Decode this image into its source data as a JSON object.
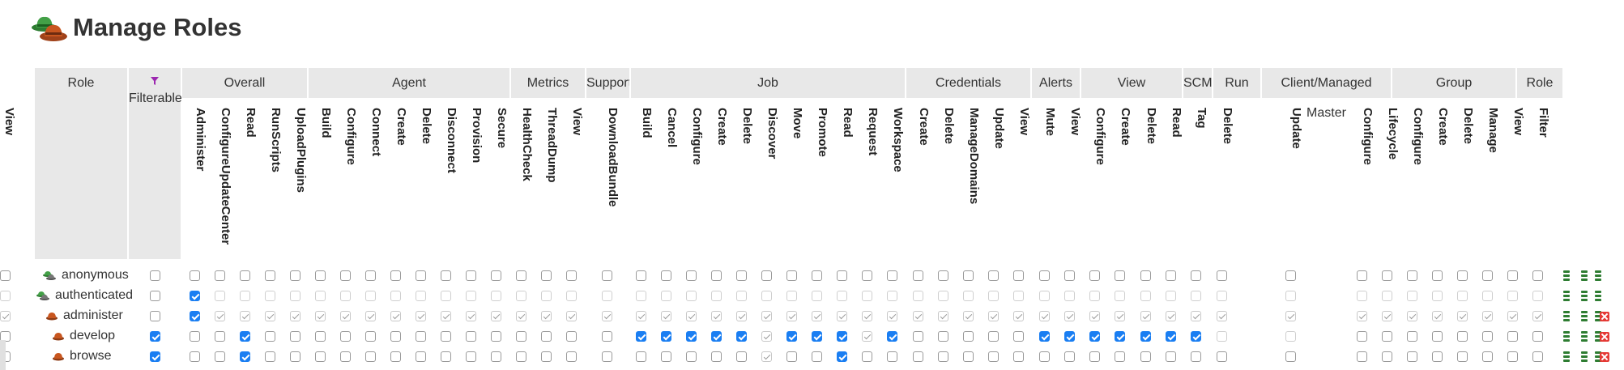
{
  "page": {
    "title": "Manage Roles"
  },
  "header": {
    "role_label": "Role",
    "filter_label": "Filterable",
    "groups": [
      {
        "name": "Overall",
        "perms": [
          "Administer",
          "ConfigureUpdateCenter",
          "Read",
          "RunScripts",
          "UploadPlugins"
        ]
      },
      {
        "name": "Agent",
        "perms": [
          "Build",
          "Configure",
          "Connect",
          "Create",
          "Delete",
          "Disconnect",
          "Provision",
          "Secure"
        ]
      },
      {
        "name": "Metrics",
        "perms": [
          "HealthCheck",
          "ThreadDump",
          "View"
        ]
      },
      {
        "name": "Support",
        "perms": [
          "DownloadBundle"
        ]
      },
      {
        "name": "Job",
        "perms": [
          "Build",
          "Cancel",
          "Configure",
          "Create",
          "Delete",
          "Discover",
          "Move",
          "Promote",
          "Read",
          "Request",
          "Workspace"
        ]
      },
      {
        "name": "Credentials",
        "perms": [
          "Create",
          "Delete",
          "ManageDomains",
          "Update",
          "View"
        ]
      },
      {
        "name": "Alerts",
        "perms": [
          "Mute",
          "View"
        ]
      },
      {
        "name": "View",
        "perms": [
          "Configure",
          "Create",
          "Delete",
          "Read"
        ]
      },
      {
        "name": "SCM",
        "perms": [
          "Tag"
        ]
      },
      {
        "name": "Run",
        "perms": [
          "Delete",
          "Update"
        ]
      },
      {
        "name": "Client/Managed Master",
        "perms": [
          "Configure",
          "Lifecycle"
        ]
      },
      {
        "name": "Group",
        "perms": [
          "Configure",
          "Create",
          "Delete",
          "Manage",
          "View"
        ]
      },
      {
        "name": "Role",
        "perms": [
          "Filter",
          "View"
        ]
      }
    ]
  },
  "roles": [
    {
      "name": "anonymous",
      "icon": "group-hat-icon",
      "filterable": false,
      "state": "rest_unchecked",
      "checked": [],
      "implied": [],
      "deletable": false
    },
    {
      "name": "authenticated",
      "icon": "group-hat-icon",
      "filterable": false,
      "state": "rest_disabled",
      "checked": [
        0
      ],
      "implied": [],
      "deletable": false
    },
    {
      "name": "administer",
      "icon": "hat-icon",
      "filterable": false,
      "state": "rest_implied",
      "checked": [
        0
      ],
      "implied": [],
      "deletable": true
    },
    {
      "name": "develop",
      "icon": "hat-icon",
      "filterable": true,
      "state": "rest_unchecked",
      "checked": [
        2,
        17,
        18,
        19,
        20,
        21,
        23,
        24,
        25,
        27,
        33,
        34,
        35,
        36,
        37,
        38,
        39
      ],
      "implied": [
        22,
        26
      ],
      "disabled": [
        40,
        41
      ],
      "deletable": true
    },
    {
      "name": "browse",
      "icon": "hat-icon",
      "filterable": true,
      "state": "rest_unchecked",
      "checked": [
        2,
        25
      ],
      "implied": [
        22
      ],
      "deletable": true
    }
  ],
  "colors": {
    "checked": "#1a7ef2",
    "header_bg": "#e8e8e8",
    "delete": "#e53935",
    "select": "#2e7d32"
  }
}
